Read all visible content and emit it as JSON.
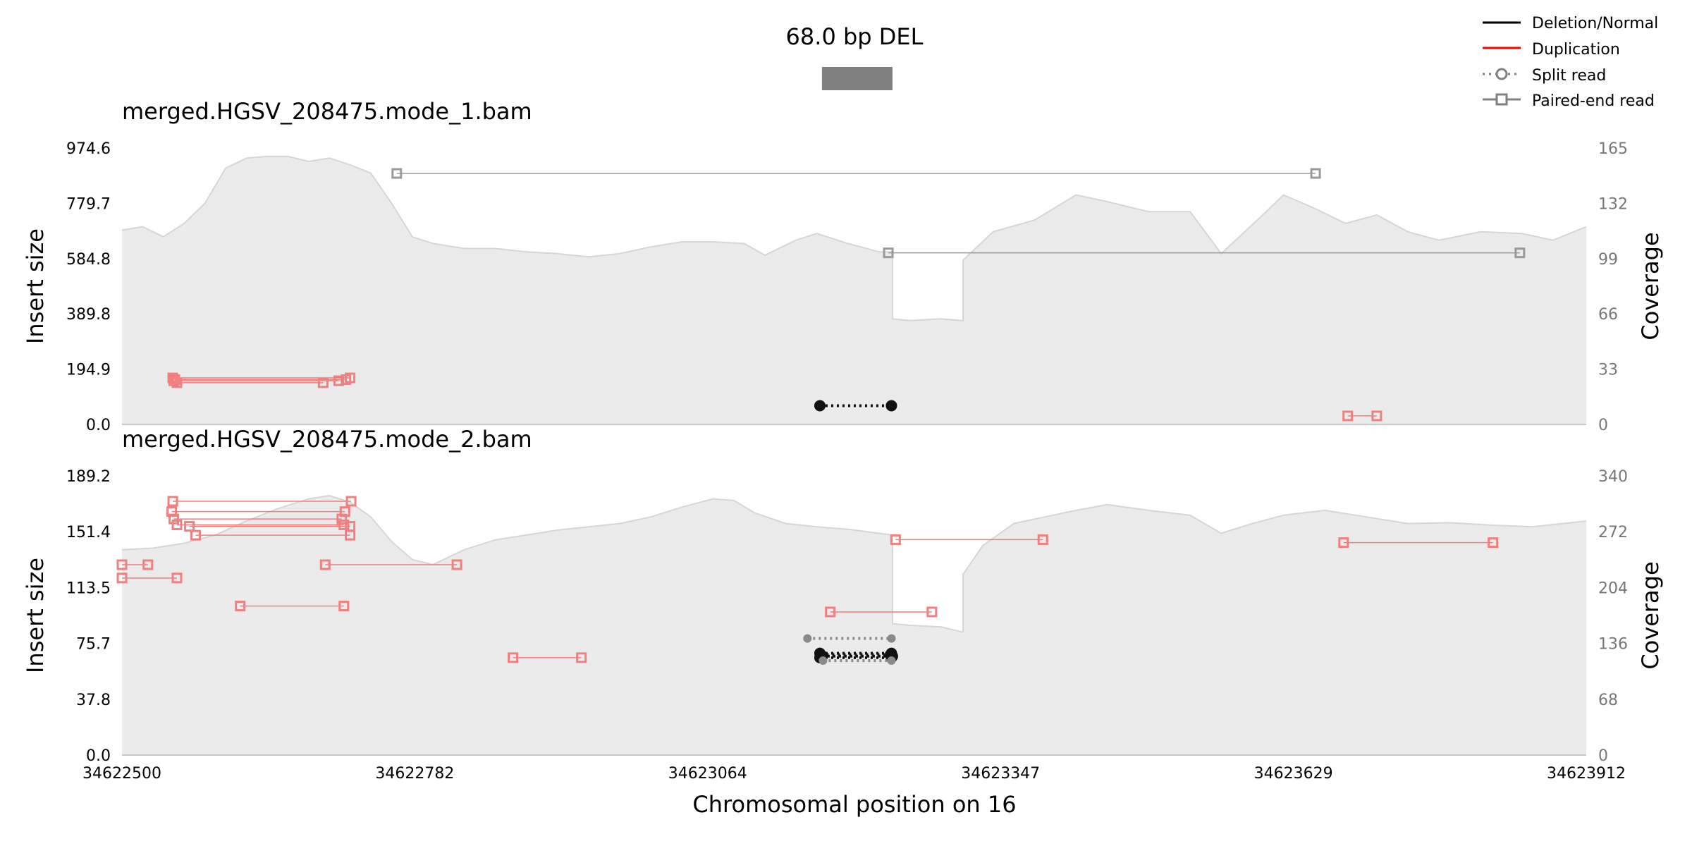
{
  "title": "68.0 bp DEL",
  "xlabel": "Chromosomal position on 16",
  "legend": {
    "placement": "top-right",
    "items": [
      {
        "label": "Deletion/Normal",
        "color": "#000000",
        "style": "line"
      },
      {
        "label": "Duplication",
        "color": "#ff0000",
        "style": "line"
      },
      {
        "label": "Split read",
        "color": "#808080",
        "style": "dotted-circle"
      },
      {
        "label": "Paired-end read",
        "color": "#808080",
        "style": "line-square"
      }
    ]
  },
  "colors": {
    "split": "#111111",
    "split_faint": "#8a8a8a",
    "paired_normal": "#9a9a9a",
    "paired_dup": "#f08080",
    "coverage": "#ebebeb"
  },
  "chart_data": [
    {
      "type": "line",
      "name": "merged.HGSV_208475.mode_1.bam",
      "title": "merged.HGSV_208475.mode_1.bam",
      "xlim": [
        34622500,
        34623912
      ],
      "xticks": [
        "34622500",
        "34622782",
        "34623064",
        "34623347",
        "34623629",
        "34623912"
      ],
      "ylabel": "Insert size",
      "ylim": [
        0,
        974.6
      ],
      "yticks": [
        "0.0",
        "194.9",
        "389.8",
        "584.8",
        "779.7",
        "974.6"
      ],
      "y2label": "Coverage",
      "y2lim": [
        0,
        165
      ],
      "y2ticks": [
        "0",
        "33",
        "66",
        "99",
        "132",
        "165"
      ],
      "coverage": [
        [
          34622500,
          116
        ],
        [
          34622520,
          118
        ],
        [
          34622540,
          112
        ],
        [
          34622560,
          120
        ],
        [
          34622580,
          132
        ],
        [
          34622600,
          153
        ],
        [
          34622620,
          159
        ],
        [
          34622640,
          160
        ],
        [
          34622660,
          160
        ],
        [
          34622680,
          157
        ],
        [
          34622700,
          159
        ],
        [
          34622720,
          155
        ],
        [
          34622740,
          150
        ],
        [
          34622760,
          132
        ],
        [
          34622780,
          112
        ],
        [
          34622800,
          108
        ],
        [
          34622830,
          105
        ],
        [
          34622860,
          105
        ],
        [
          34622890,
          103
        ],
        [
          34622920,
          102
        ],
        [
          34622950,
          100
        ],
        [
          34622980,
          102
        ],
        [
          34623010,
          106
        ],
        [
          34623040,
          109
        ],
        [
          34623070,
          109
        ],
        [
          34623100,
          108
        ],
        [
          34623120,
          101
        ],
        [
          34623150,
          110
        ],
        [
          34623170,
          114
        ],
        [
          34623200,
          108
        ],
        [
          34623230,
          103
        ],
        [
          34623243,
          103
        ],
        [
          34623243,
          63
        ],
        [
          34623260,
          62
        ],
        [
          34623290,
          63
        ],
        [
          34623310,
          62
        ],
        [
          34623311,
          62
        ],
        [
          34623311,
          98
        ],
        [
          34623340,
          115
        ],
        [
          34623380,
          122
        ],
        [
          34623420,
          137
        ],
        [
          34623450,
          133
        ],
        [
          34623490,
          127
        ],
        [
          34623530,
          127
        ],
        [
          34623560,
          102
        ],
        [
          34623600,
          125
        ],
        [
          34623620,
          137
        ],
        [
          34623650,
          129
        ],
        [
          34623680,
          120
        ],
        [
          34623710,
          125
        ],
        [
          34623740,
          115
        ],
        [
          34623770,
          110
        ],
        [
          34623810,
          115
        ],
        [
          34623850,
          114
        ],
        [
          34623880,
          110
        ],
        [
          34623912,
          118
        ]
      ],
      "split_reads": [
        {
          "x1": 34623173,
          "x2": 34623242,
          "y": 66
        }
      ],
      "paired_reads": [
        {
          "x1": 34622765,
          "x2": 34623651,
          "y": 885,
          "kind": "normal"
        },
        {
          "x1": 34623239,
          "x2": 34623848,
          "y": 605,
          "kind": "normal"
        },
        {
          "x1": 34622549,
          "x2": 34622720,
          "y": 164,
          "kind": "duplication"
        },
        {
          "x1": 34622550,
          "x2": 34622709,
          "y": 154,
          "kind": "duplication"
        },
        {
          "x1": 34622553,
          "x2": 34622694,
          "y": 147,
          "kind": "duplication"
        },
        {
          "x1": 34622551,
          "x2": 34622716,
          "y": 158,
          "kind": "duplication"
        },
        {
          "x1": 34623682,
          "x2": 34623710,
          "y": 30,
          "kind": "duplication"
        }
      ]
    },
    {
      "type": "line",
      "name": "merged.HGSV_208475.mode_2.bam",
      "title": "merged.HGSV_208475.mode_2.bam",
      "xlim": [
        34622500,
        34623912
      ],
      "xticks": [
        "34622500",
        "34622782",
        "34623064",
        "34623347",
        "34623629",
        "34623912"
      ],
      "ylabel": "Insert size",
      "ylim": [
        0,
        189.2
      ],
      "yticks": [
        "0.0",
        "37.8",
        "75.7",
        "113.5",
        "151.4",
        "189.2"
      ],
      "y2label": "Coverage",
      "y2lim": [
        0,
        340
      ],
      "y2ticks": [
        "0",
        "68",
        "136",
        "204",
        "272",
        "340"
      ],
      "coverage": [
        [
          34622500,
          250
        ],
        [
          34622530,
          252
        ],
        [
          34622560,
          258
        ],
        [
          34622590,
          268
        ],
        [
          34622620,
          285
        ],
        [
          34622650,
          300
        ],
        [
          34622680,
          312
        ],
        [
          34622700,
          316
        ],
        [
          34622720,
          308
        ],
        [
          34622740,
          290
        ],
        [
          34622760,
          260
        ],
        [
          34622780,
          238
        ],
        [
          34622800,
          232
        ],
        [
          34622830,
          250
        ],
        [
          34622860,
          262
        ],
        [
          34622890,
          268
        ],
        [
          34622920,
          274
        ],
        [
          34622950,
          278
        ],
        [
          34622980,
          282
        ],
        [
          34623010,
          290
        ],
        [
          34623040,
          302
        ],
        [
          34623070,
          312
        ],
        [
          34623090,
          310
        ],
        [
          34623110,
          295
        ],
        [
          34623140,
          282
        ],
        [
          34623170,
          278
        ],
        [
          34623200,
          275
        ],
        [
          34623230,
          270
        ],
        [
          34623243,
          268
        ],
        [
          34623243,
          160
        ],
        [
          34623260,
          158
        ],
        [
          34623290,
          156
        ],
        [
          34623310,
          150
        ],
        [
          34623311,
          150
        ],
        [
          34623311,
          220
        ],
        [
          34623330,
          255
        ],
        [
          34623360,
          282
        ],
        [
          34623390,
          290
        ],
        [
          34623420,
          298
        ],
        [
          34623450,
          305
        ],
        [
          34623490,
          298
        ],
        [
          34623530,
          292
        ],
        [
          34623560,
          270
        ],
        [
          34623590,
          282
        ],
        [
          34623620,
          292
        ],
        [
          34623660,
          298
        ],
        [
          34623700,
          290
        ],
        [
          34623740,
          282
        ],
        [
          34623780,
          283
        ],
        [
          34623820,
          280
        ],
        [
          34623860,
          278
        ],
        [
          34623912,
          285
        ]
      ],
      "split_reads": [
        {
          "x1": 34623173,
          "x2": 34623242,
          "y": 69,
          "kind": "normal"
        },
        {
          "x1": 34623174,
          "x2": 34623241,
          "y": 68,
          "kind": "normal"
        },
        {
          "x1": 34623175,
          "x2": 34623243,
          "y": 67,
          "kind": "normal"
        },
        {
          "x1": 34623173,
          "x2": 34623242,
          "y": 66,
          "kind": "normal"
        },
        {
          "x1": 34623161,
          "x2": 34623242,
          "y": 79,
          "kind": "faint"
        },
        {
          "x1": 34623176,
          "x2": 34623242,
          "y": 64,
          "kind": "faint"
        }
      ],
      "paired_reads": [
        {
          "x1": 34622549,
          "x2": 34622721,
          "y": 172,
          "kind": "duplication"
        },
        {
          "x1": 34622548,
          "x2": 34622715,
          "y": 165,
          "kind": "duplication"
        },
        {
          "x1": 34622550,
          "x2": 34622712,
          "y": 160,
          "kind": "duplication"
        },
        {
          "x1": 34622553,
          "x2": 34622714,
          "y": 156,
          "kind": "duplication"
        },
        {
          "x1": 34622565,
          "x2": 34622720,
          "y": 155,
          "kind": "duplication"
        },
        {
          "x1": 34622571,
          "x2": 34622720,
          "y": 149,
          "kind": "duplication"
        },
        {
          "x1": 34622500,
          "x2": 34622525,
          "y": 129,
          "kind": "duplication"
        },
        {
          "x1": 34622696,
          "x2": 34622823,
          "y": 129,
          "kind": "duplication"
        },
        {
          "x1": 34622500,
          "x2": 34622553,
          "y": 120,
          "kind": "duplication"
        },
        {
          "x1": 34622614,
          "x2": 34622714,
          "y": 101,
          "kind": "duplication"
        },
        {
          "x1": 34622877,
          "x2": 34622943,
          "y": 66,
          "kind": "duplication"
        },
        {
          "x1": 34623183,
          "x2": 34623281,
          "y": 97,
          "kind": "duplication"
        },
        {
          "x1": 34623246,
          "x2": 34623388,
          "y": 146,
          "kind": "duplication"
        },
        {
          "x1": 34623678,
          "x2": 34623822,
          "y": 144,
          "kind": "duplication"
        }
      ]
    }
  ],
  "deletion_interval": {
    "x1": 34623175,
    "x2": 34623243,
    "color": "#808080"
  }
}
